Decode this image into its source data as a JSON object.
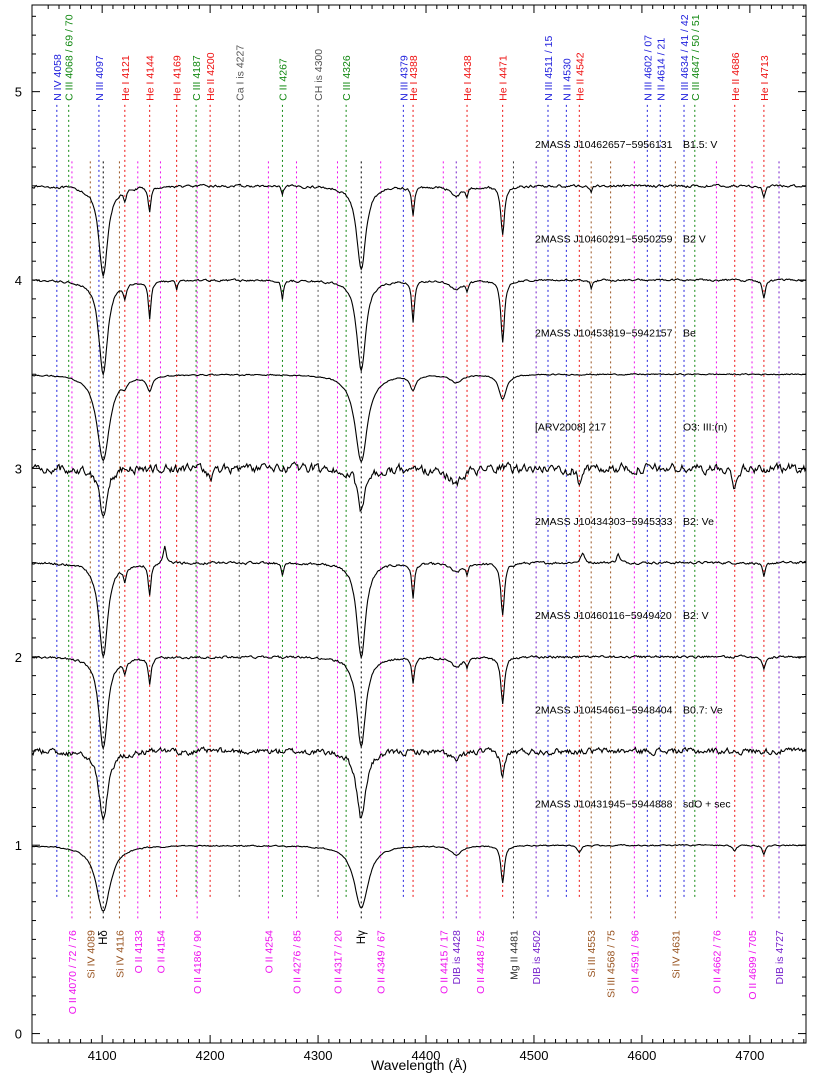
{
  "chart_data": {
    "type": "line",
    "xlabel": "Wavelength (Å)",
    "ylabel": "",
    "xlim": [
      4035,
      4752
    ],
    "ylim": [
      -0.05,
      5.46
    ],
    "xticks": [
      4100,
      4200,
      4300,
      4400,
      4500,
      4600,
      4700
    ],
    "yticks": [
      0,
      1,
      2,
      3,
      4,
      5
    ],
    "grid": false,
    "colors": {
      "axis": "#000000",
      "spectrum": "#000000",
      "N": "#2222dd",
      "C": "#118811",
      "He": "#ee1111",
      "grey": "#555555",
      "O": "#ee11ee",
      "Si": "#995522",
      "DIB": "#7722cc",
      "Mg": "#333333"
    },
    "top_lines": [
      {
        "label": "N IV 4058",
        "wl": 4058,
        "color": "N"
      },
      {
        "label": "C III 4068 / 69 / 70",
        "wl": 4069,
        "color": "C"
      },
      {
        "label": "N III 4097",
        "wl": 4097,
        "color": "N"
      },
      {
        "label": "He I 4121",
        "wl": 4121,
        "color": "He"
      },
      {
        "label": "He I 4144",
        "wl": 4144,
        "color": "He"
      },
      {
        "label": "He I 4169",
        "wl": 4169,
        "color": "He"
      },
      {
        "label": "C III 4187",
        "wl": 4187,
        "color": "C"
      },
      {
        "label": "He II 4200",
        "wl": 4200,
        "color": "He"
      },
      {
        "label": "Ca I is 4227",
        "wl": 4227,
        "color": "grey"
      },
      {
        "label": "C II 4267",
        "wl": 4267,
        "color": "C"
      },
      {
        "label": "CH is 4300",
        "wl": 4300,
        "color": "grey"
      },
      {
        "label": "C III 4326",
        "wl": 4326,
        "color": "C"
      },
      {
        "label": "N III 4379",
        "wl": 4379,
        "color": "N"
      },
      {
        "label": "He I 4388",
        "wl": 4388,
        "color": "He"
      },
      {
        "label": "He I 4438",
        "wl": 4438,
        "color": "He"
      },
      {
        "label": "He I 4471",
        "wl": 4471,
        "color": "He"
      },
      {
        "label": "N III 4511 / 15",
        "wl": 4513,
        "color": "N"
      },
      {
        "label": "N II 4530",
        "wl": 4530,
        "color": "N"
      },
      {
        "label": "He II 4542",
        "wl": 4542,
        "color": "He"
      },
      {
        "label": "N III 4602 / 07",
        "wl": 4605,
        "color": "N"
      },
      {
        "label": "N II 4614 / 21",
        "wl": 4617,
        "color": "N"
      },
      {
        "label": "N III 4634 / 41 / 42",
        "wl": 4639,
        "color": "N"
      },
      {
        "label": "C III 4647 / 50 / 51",
        "wl": 4649,
        "color": "C"
      },
      {
        "label": "He II 4686",
        "wl": 4686,
        "color": "He"
      },
      {
        "label": "He I 4713",
        "wl": 4713,
        "color": "He"
      }
    ],
    "bottom_lines": [
      {
        "label": "O II 4070 / 72 / 76",
        "wl": 4072,
        "color": "O"
      },
      {
        "label": "Si IV 4089",
        "wl": 4089,
        "color": "Si"
      },
      {
        "label": "Hδ",
        "wl": 4101,
        "color": "axis"
      },
      {
        "label": "Si IV 4116",
        "wl": 4116,
        "color": "Si"
      },
      {
        "label": "O II 4133",
        "wl": 4133,
        "color": "O"
      },
      {
        "label": "O II 4154",
        "wl": 4154,
        "color": "O"
      },
      {
        "label": "O II 4186 / 90",
        "wl": 4188,
        "color": "O"
      },
      {
        "label": "O II 4254",
        "wl": 4254,
        "color": "O"
      },
      {
        "label": "O II 4276 / 85",
        "wl": 4280,
        "color": "O"
      },
      {
        "label": "O II 4317 / 20",
        "wl": 4318,
        "color": "O"
      },
      {
        "label": "Hγ",
        "wl": 4340,
        "color": "axis"
      },
      {
        "label": "O II 4349 / 67",
        "wl": 4358,
        "color": "O"
      },
      {
        "label": "O II 4415 / 17",
        "wl": 4416,
        "color": "O"
      },
      {
        "label": "DIB is 4428",
        "wl": 4428,
        "color": "DIB"
      },
      {
        "label": "O II 4448 / 52",
        "wl": 4450,
        "color": "O"
      },
      {
        "label": "Mg II 4481",
        "wl": 4481,
        "color": "Mg"
      },
      {
        "label": "DIB is 4502",
        "wl": 4502,
        "color": "DIB"
      },
      {
        "label": "Si III 4553",
        "wl": 4553,
        "color": "Si"
      },
      {
        "label": "Si III 4568 / 75",
        "wl": 4571,
        "color": "Si"
      },
      {
        "label": "O II 4591 / 96",
        "wl": 4593,
        "color": "O"
      },
      {
        "label": "Si IV 4631",
        "wl": 4631,
        "color": "Si"
      },
      {
        "label": "O II 4662 / 76",
        "wl": 4669,
        "color": "O"
      },
      {
        "label": "O II 4699 / 705",
        "wl": 4702,
        "color": "O"
      },
      {
        "label": "DIB is 4727",
        "wl": 4727,
        "color": "DIB"
      }
    ],
    "series": [
      {
        "name": "2MASS J10462657−5956131",
        "sptype": "B1.5: V",
        "offset": 4.5,
        "noise": 0.012,
        "lines": [
          {
            "wl": 4101,
            "d": 0.48,
            "w": 5
          },
          {
            "wl": 4340,
            "d": 0.45,
            "w": 5
          },
          {
            "wl": 4121,
            "d": 0.06,
            "w": 1.5
          },
          {
            "wl": 4144,
            "d": 0.13,
            "w": 1.5
          },
          {
            "wl": 4267,
            "d": 0.05,
            "w": 1.2
          },
          {
            "wl": 4388,
            "d": 0.15,
            "w": 1.5
          },
          {
            "wl": 4438,
            "d": 0.05,
            "w": 1.2
          },
          {
            "wl": 4471,
            "d": 0.26,
            "w": 2
          },
          {
            "wl": 4553,
            "d": 0.04,
            "w": 1
          },
          {
            "wl": 4713,
            "d": 0.06,
            "w": 1.5
          },
          {
            "wl": 4428,
            "d": 0.05,
            "w": 6
          }
        ]
      },
      {
        "name": "2MASS J10460291−5950259",
        "sptype": "B2 V",
        "offset": 4.0,
        "noise": 0.01,
        "lines": [
          {
            "wl": 4101,
            "d": 0.5,
            "w": 5
          },
          {
            "wl": 4340,
            "d": 0.48,
            "w": 5
          },
          {
            "wl": 4121,
            "d": 0.08,
            "w": 1.5
          },
          {
            "wl": 4144,
            "d": 0.2,
            "w": 1.5
          },
          {
            "wl": 4169,
            "d": 0.05,
            "w": 1
          },
          {
            "wl": 4267,
            "d": 0.1,
            "w": 1.2
          },
          {
            "wl": 4388,
            "d": 0.22,
            "w": 1.5
          },
          {
            "wl": 4438,
            "d": 0.05,
            "w": 1.2
          },
          {
            "wl": 4471,
            "d": 0.33,
            "w": 2
          },
          {
            "wl": 4553,
            "d": 0.05,
            "w": 1
          },
          {
            "wl": 4713,
            "d": 0.1,
            "w": 1.5
          },
          {
            "wl": 4428,
            "d": 0.05,
            "w": 6
          }
        ]
      },
      {
        "name": "2MASS J10453819−5942157",
        "sptype": "Be",
        "offset": 3.5,
        "noise": 0.006,
        "lines": [
          {
            "wl": 4101,
            "d": 0.46,
            "w": 7
          },
          {
            "wl": 4340,
            "d": 0.46,
            "w": 7
          },
          {
            "wl": 4121,
            "d": 0.03,
            "w": 3
          },
          {
            "wl": 4144,
            "d": 0.08,
            "w": 3
          },
          {
            "wl": 4388,
            "d": 0.08,
            "w": 3
          },
          {
            "wl": 4471,
            "d": 0.13,
            "w": 4
          },
          {
            "wl": 4428,
            "d": 0.04,
            "w": 6
          }
        ]
      },
      {
        "name": "[ARV2008] 217",
        "sptype": "O3: III:(n)",
        "offset": 3.0,
        "noise": 0.045,
        "lines": [
          {
            "wl": 4101,
            "d": 0.25,
            "w": 4
          },
          {
            "wl": 4340,
            "d": 0.24,
            "w": 4
          },
          {
            "wl": 4200,
            "d": 0.06,
            "w": 2
          },
          {
            "wl": 4542,
            "d": 0.08,
            "w": 2
          },
          {
            "wl": 4686,
            "d": 0.1,
            "w": 2
          },
          {
            "wl": 4428,
            "d": 0.08,
            "w": 8
          }
        ]
      },
      {
        "name": "2MASS J10434303−5945333",
        "sptype": "B2: Ve",
        "offset": 2.5,
        "noise": 0.012,
        "lines": [
          {
            "wl": 4101,
            "d": 0.5,
            "w": 5
          },
          {
            "wl": 4340,
            "d": 0.5,
            "w": 5
          },
          {
            "wl": 4121,
            "d": 0.08,
            "w": 1.5
          },
          {
            "wl": 4144,
            "d": 0.17,
            "w": 1.5
          },
          {
            "wl": 4158,
            "d": -0.1,
            "w": 1.5
          },
          {
            "wl": 4267,
            "d": 0.06,
            "w": 1.2
          },
          {
            "wl": 4388,
            "d": 0.18,
            "w": 1.5
          },
          {
            "wl": 4438,
            "d": 0.06,
            "w": 1.2
          },
          {
            "wl": 4471,
            "d": 0.28,
            "w": 2
          },
          {
            "wl": 4545,
            "d": -0.05,
            "w": 2
          },
          {
            "wl": 4578,
            "d": -0.05,
            "w": 1.5
          },
          {
            "wl": 4713,
            "d": 0.08,
            "w": 1.5
          },
          {
            "wl": 4428,
            "d": 0.05,
            "w": 6
          }
        ]
      },
      {
        "name": "2MASS J10460116−5949420",
        "sptype": "B2: V",
        "offset": 2.0,
        "noise": 0.012,
        "lines": [
          {
            "wl": 4101,
            "d": 0.49,
            "w": 5
          },
          {
            "wl": 4340,
            "d": 0.48,
            "w": 5
          },
          {
            "wl": 4121,
            "d": 0.06,
            "w": 1.5
          },
          {
            "wl": 4144,
            "d": 0.14,
            "w": 1.5
          },
          {
            "wl": 4388,
            "d": 0.13,
            "w": 1.5
          },
          {
            "wl": 4438,
            "d": 0.05,
            "w": 1.2
          },
          {
            "wl": 4471,
            "d": 0.25,
            "w": 2
          },
          {
            "wl": 4713,
            "d": 0.06,
            "w": 1.5
          },
          {
            "wl": 4428,
            "d": 0.05,
            "w": 6
          }
        ]
      },
      {
        "name": "2MASS J10454661−5948404",
        "sptype": "B0.7: Ve",
        "offset": 1.5,
        "noise": 0.03,
        "lines": [
          {
            "wl": 4101,
            "d": 0.36,
            "w": 5
          },
          {
            "wl": 4340,
            "d": 0.36,
            "w": 5
          },
          {
            "wl": 4471,
            "d": 0.14,
            "w": 2
          },
          {
            "wl": 4428,
            "d": 0.05,
            "w": 6
          }
        ]
      },
      {
        "name": "2MASS J10431945−5944888",
        "sptype": "sdO + sec",
        "offset": 1.0,
        "noise": 0.006,
        "lines": [
          {
            "wl": 4101,
            "d": 0.35,
            "w": 8
          },
          {
            "wl": 4340,
            "d": 0.33,
            "w": 8
          },
          {
            "wl": 4471,
            "d": 0.2,
            "w": 2
          },
          {
            "wl": 4542,
            "d": 0.04,
            "w": 2
          },
          {
            "wl": 4686,
            "d": 0.03,
            "w": 2
          },
          {
            "wl": 4713,
            "d": 0.05,
            "w": 1.5
          },
          {
            "wl": 4428,
            "d": 0.05,
            "w": 6
          }
        ]
      }
    ]
  }
}
